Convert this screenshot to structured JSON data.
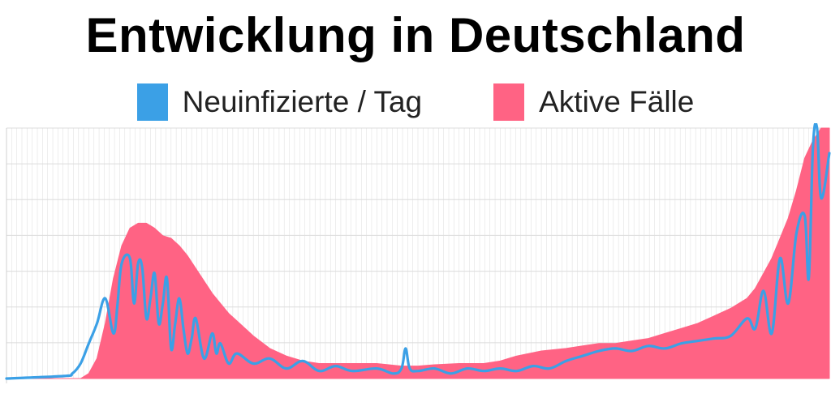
{
  "title": "Entwicklung in Deutschland",
  "colors": {
    "new": "#3ba0e6",
    "active": "#ff6384",
    "grid": "#e2e2e2",
    "axis": "#d0d0d0"
  },
  "legend": [
    {
      "label": "Neuinfizierte / Tag",
      "color": "#3ba0e6"
    },
    {
      "label": "Aktive Fälle",
      "color": "#ff6384"
    }
  ],
  "chart_data": {
    "type": "area",
    "title": "Entwicklung in Deutschland",
    "xlabel": "",
    "ylabel": "",
    "grid": true,
    "legend_position": "top",
    "x_range": [
      0,
      100
    ],
    "ylim": [
      0,
      100
    ],
    "series": [
      {
        "name": "Aktive Fälle",
        "type": "area",
        "color": "#ff6384",
        "x": [
          0,
          9,
          10,
          11,
          12,
          13,
          14,
          15,
          16,
          17,
          18,
          19,
          20,
          21,
          22,
          23,
          24,
          25,
          26,
          27,
          28,
          30,
          32,
          34,
          36,
          38,
          40,
          42,
          45,
          48,
          50,
          52,
          55,
          58,
          60,
          62,
          65,
          68,
          70,
          72,
          74,
          76,
          78,
          80,
          82,
          84,
          86,
          88,
          90,
          91,
          92,
          93,
          94,
          95,
          96,
          97,
          98,
          99,
          100
        ],
        "values": [
          0,
          0,
          2,
          8,
          22,
          40,
          53,
          60,
          62,
          62,
          60,
          57,
          56,
          53,
          49,
          44,
          39,
          34,
          30,
          26,
          23,
          17,
          12,
          9,
          7,
          6,
          6,
          6,
          6,
          5,
          5,
          5.5,
          6,
          6,
          7,
          9,
          11,
          12,
          13,
          14,
          14,
          15,
          16,
          18,
          20,
          22,
          25,
          28,
          32,
          36,
          42,
          48,
          56,
          64,
          75,
          88,
          95,
          100,
          100
        ]
      },
      {
        "name": "Neuinfizierte / Tag",
        "type": "line",
        "color": "#3ba0e6",
        "x": [
          0,
          7,
          8,
          9,
          10,
          11,
          12,
          13,
          13.5,
          14,
          15,
          15.5,
          16,
          16.5,
          17,
          17.5,
          18,
          18.5,
          19,
          19.5,
          20,
          20.5,
          21,
          21.5,
          22,
          22.5,
          23,
          24,
          25,
          25.5,
          26,
          27,
          28,
          30,
          32,
          34,
          36,
          38,
          40,
          42,
          45,
          47,
          48,
          48.5,
          49,
          50,
          52,
          54,
          56,
          58,
          60,
          62,
          64,
          66,
          68,
          70,
          72,
          74,
          76,
          78,
          80,
          82,
          84,
          86,
          88,
          90,
          91,
          92,
          93,
          94,
          95,
          96,
          97,
          97.5,
          98,
          98.5,
          99,
          100
        ],
        "values": [
          0,
          1,
          2,
          6,
          14,
          22,
          32,
          18,
          30,
          46,
          48,
          30,
          46,
          44,
          24,
          32,
          42,
          22,
          30,
          40,
          12,
          22,
          32,
          20,
          10,
          16,
          24,
          8,
          18,
          10,
          14,
          6,
          10,
          6,
          8,
          4,
          7,
          3,
          5,
          3,
          4,
          2,
          4,
          12,
          4,
          3,
          4,
          2,
          4,
          3,
          4,
          3,
          5,
          4,
          7,
          9,
          11,
          12,
          11,
          13,
          12,
          14,
          15,
          16,
          17,
          24,
          20,
          35,
          18,
          48,
          30,
          58,
          65,
          40,
          92,
          100,
          72,
          90
        ]
      }
    ]
  }
}
